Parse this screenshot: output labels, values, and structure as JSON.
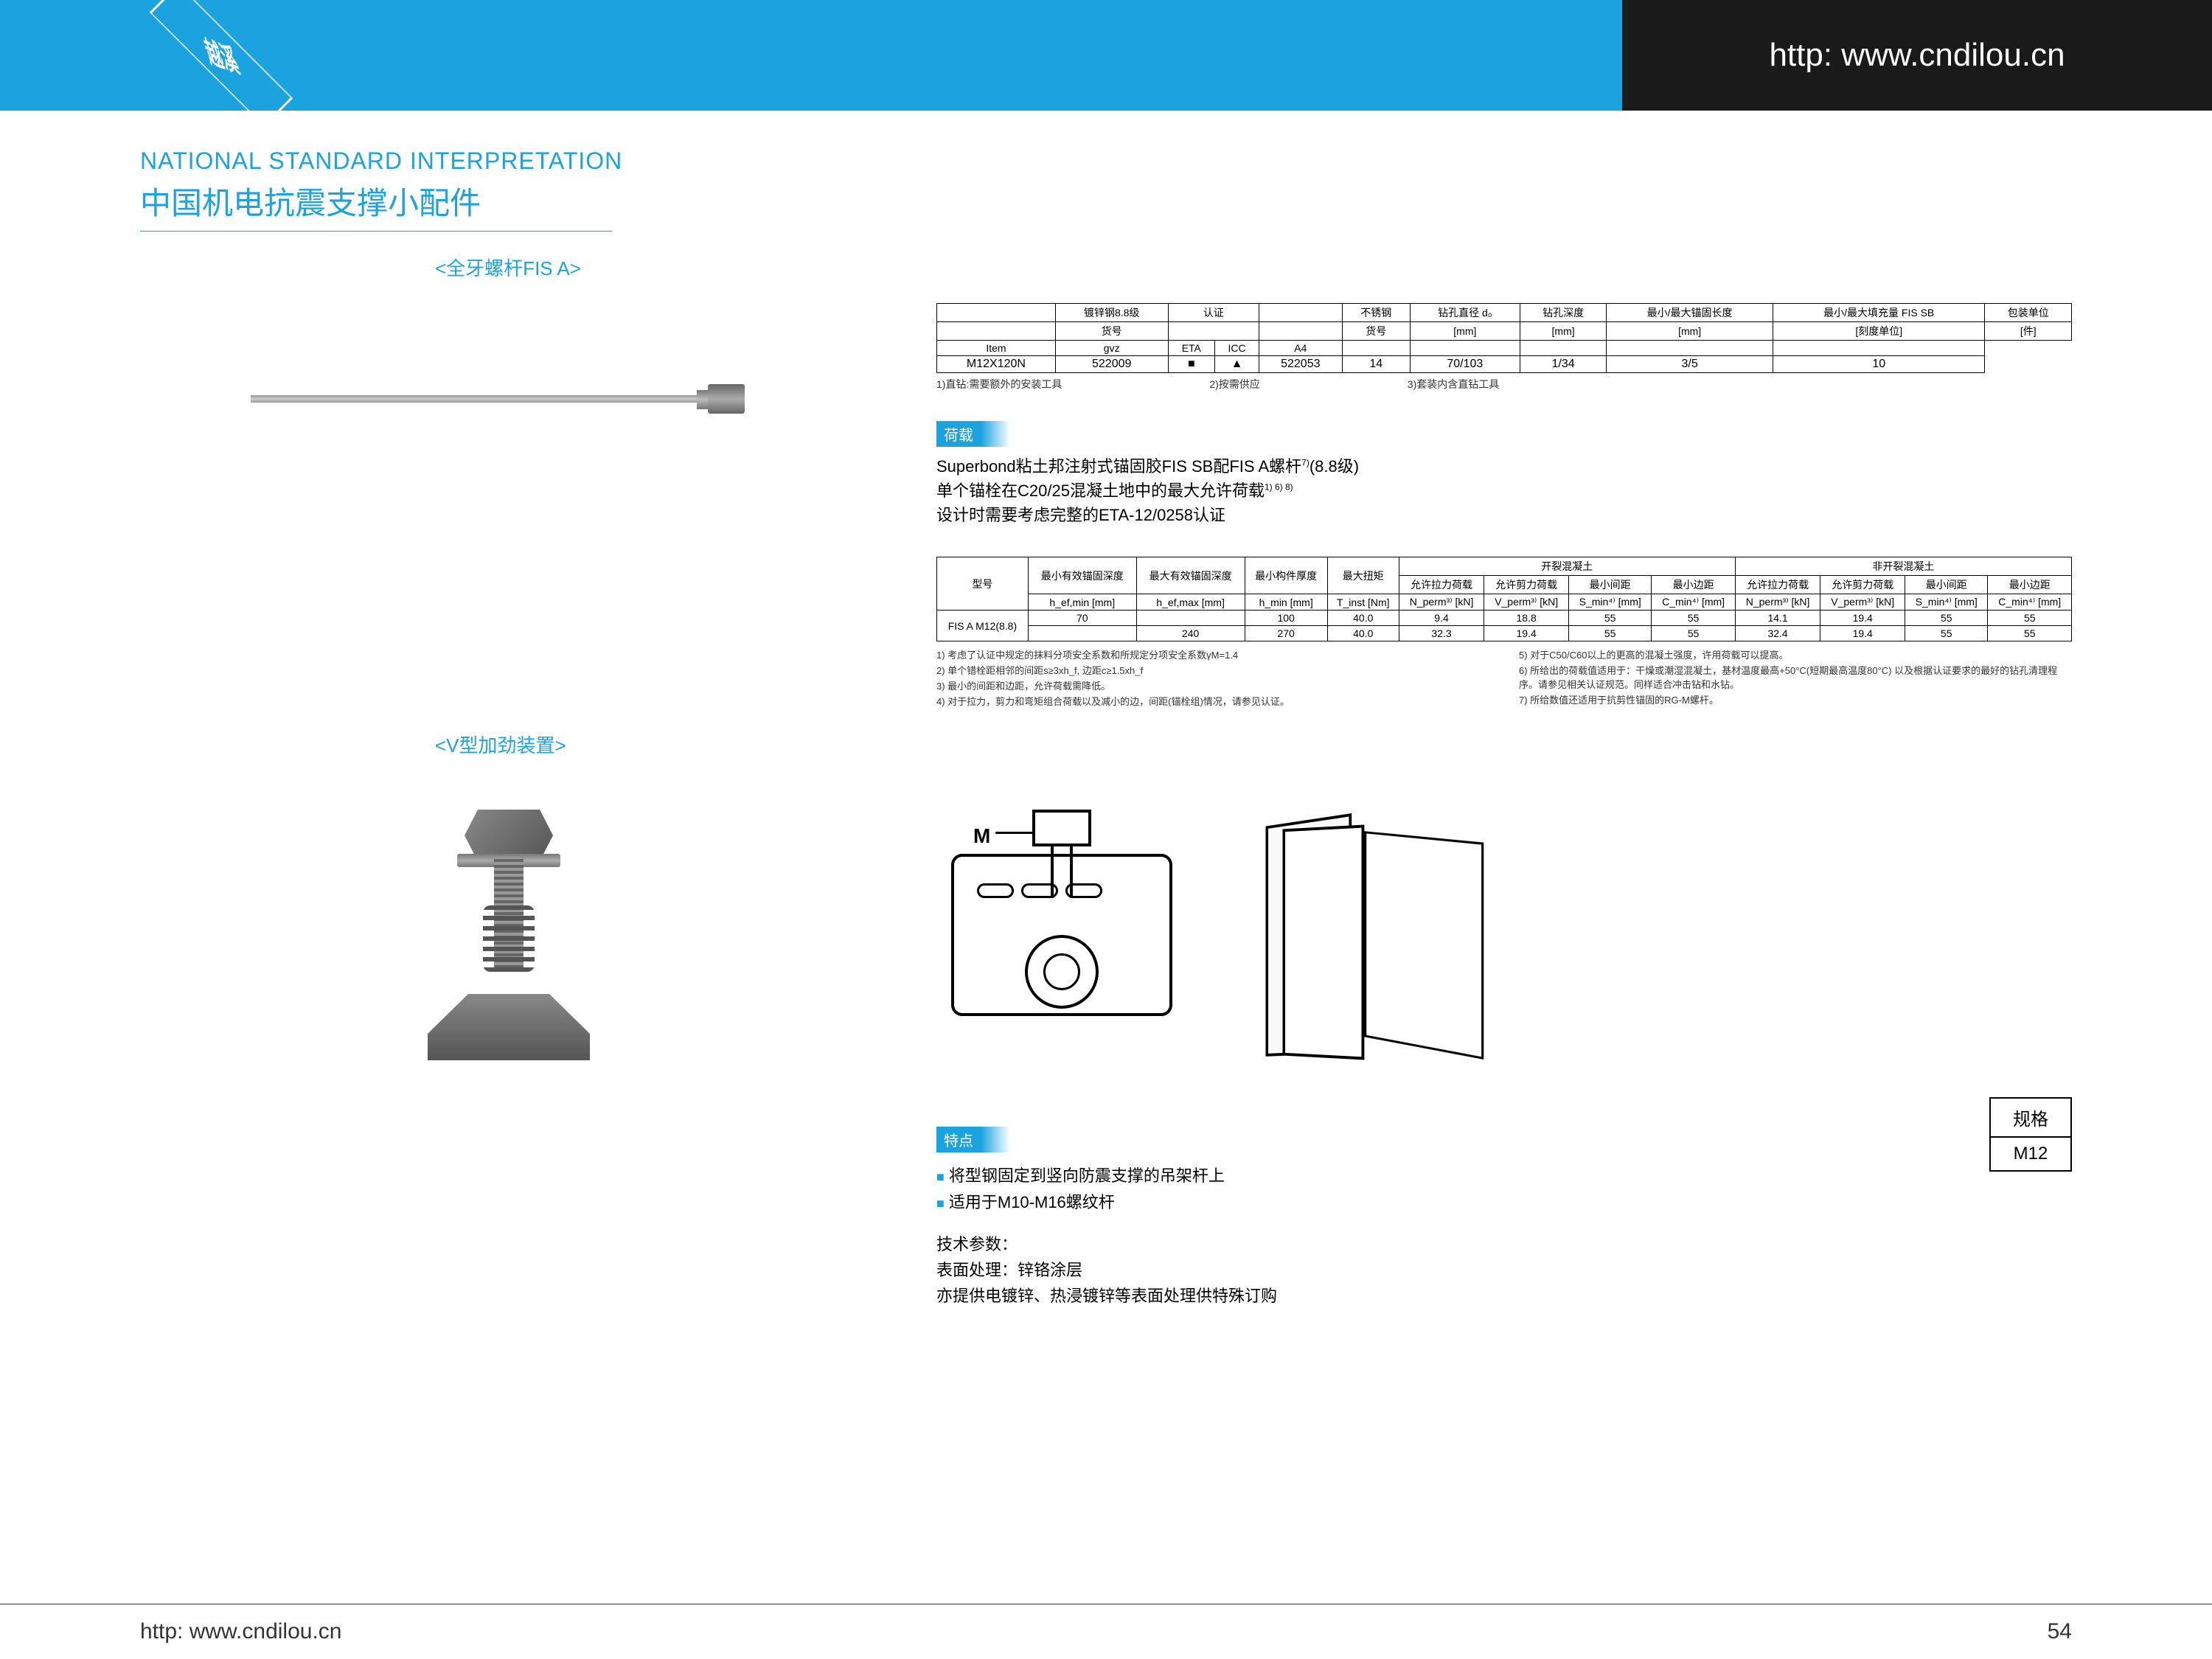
{
  "header": {
    "logo_text": "越溪",
    "url": "http: www.cndilou.cn"
  },
  "titles": {
    "en": "NATIONAL STANDARD INTERPRETATION",
    "cn": "中国机电抗震支撑小配件",
    "sub1": "<全牙螺杆FIS A>",
    "sub2": "<V型加劲装置>"
  },
  "table1": {
    "headers": [
      "",
      "镀锌钢8.8级",
      "认证",
      "",
      "不锈钢",
      "钻孔直径 d₀",
      "钻孔深度",
      "最小/最大锚固长度",
      "最小/最大填充量 FIS SB",
      "包装单位"
    ],
    "subheaders": [
      "",
      "货号",
      "",
      "",
      "货号",
      "[mm]",
      "[mm]",
      "[mm]",
      "[刻度单位]",
      "[件]"
    ],
    "row_labels": [
      "Item",
      "gvz",
      "ETA",
      "ICC",
      "A4",
      "",
      "",
      "",
      "",
      ""
    ],
    "row": [
      "M12X120N",
      "522009",
      "■",
      "▲",
      "522053",
      "14",
      "70/103",
      "1/34",
      "3/5",
      "10"
    ],
    "footnotes": [
      "1)直钻:需要额外的安装工具",
      "2)按需供应",
      "3)套装内含直钻工具"
    ]
  },
  "load_section": {
    "label": "荷载",
    "line1": "Superbond粘土邦注射式锚固胶FIS SB配FIS A螺杆",
    "line1_sup": "7)",
    "line1_end": "(8.8级)",
    "line2": "单个锚栓在C20/25混凝土地中的最大允许荷载",
    "line2_sup": "1) 6) 8)",
    "line3": "设计时需要考虑完整的ETA-12/0258认证"
  },
  "table2": {
    "cat1": "开裂混凝土",
    "cat2": "非开裂混凝土",
    "col_model": "型号",
    "cols": [
      "最小有效锚固深度",
      "最大有效锚固深度",
      "最小构件厚度",
      "最大扭矩",
      "允许拉力荷载",
      "允许剪力荷载",
      "最小间距",
      "最小边距",
      "允许拉力荷载",
      "允许剪力荷载",
      "最小间距",
      "最小边距"
    ],
    "syms": [
      "h_ef,min [mm]",
      "h_ef,max [mm]",
      "h_min [mm]",
      "T_inst [Nm]",
      "N_perm³⁾ [kN]",
      "V_perm³⁾ [kN]",
      "S_min⁴⁾ [mm]",
      "C_min⁴⁾ [mm]",
      "N_perm³⁾ [kN]",
      "V_perm³⁾ [kN]",
      "S_min⁴⁾ [mm]",
      "C_min⁴⁾ [mm]"
    ],
    "model": "FIS A M12(8.8)",
    "row1": [
      "70",
      "",
      "100",
      "40.0",
      "9.4",
      "18.8",
      "55",
      "55",
      "14.1",
      "19.4",
      "55",
      "55"
    ],
    "row2": [
      "",
      "240",
      "270",
      "40.0",
      "32.3",
      "19.4",
      "55",
      "55",
      "32.4",
      "19.4",
      "55",
      "55"
    ],
    "notes": [
      "1) 考虑了认证中规定的抹料分项安全系数和所规定分项安全系数γM=1.4",
      "2) 单个错栓距相邻的间距s≥3xh_f, 边距c≥1.5xh_f",
      "3) 最小的间距和边距，允许荷载需降低。",
      "4) 对于拉力，剪力和弯矩组合荷载以及减小的边，间距(锚栓组)情况，请参见认证。",
      "5) 对于C50/C60以上的更高的混凝土强度，许用荷载可以提高。",
      "6) 所给出的荷载值适用于：干燥或潮湿混凝土，基材温度最高+50°C(短期最高温度80°C) 以及根据认证要求的最好的钻孔清理程序。请参见相关认证规范。同样适合冲击钻和水钻。",
      "7) 所给数值还适用于抗剪性锚固的RG-M螺杆。"
    ]
  },
  "features": {
    "label": "特点",
    "items": [
      "将型钢固定到竖向防震支撑的吊架杆上",
      "适用于M10-M16螺纹杆"
    ],
    "tech_title": "技术参数：",
    "tech_line1": "表面处理：锌铬涂层",
    "tech_line2": "亦提供电镀锌、热浸镀锌等表面处理供特殊订购"
  },
  "spec": {
    "title": "规格",
    "value": "M12"
  },
  "diagram": {
    "m_label": "M"
  },
  "footer": {
    "url": "http: www.cndilou.cn",
    "page": "54"
  }
}
